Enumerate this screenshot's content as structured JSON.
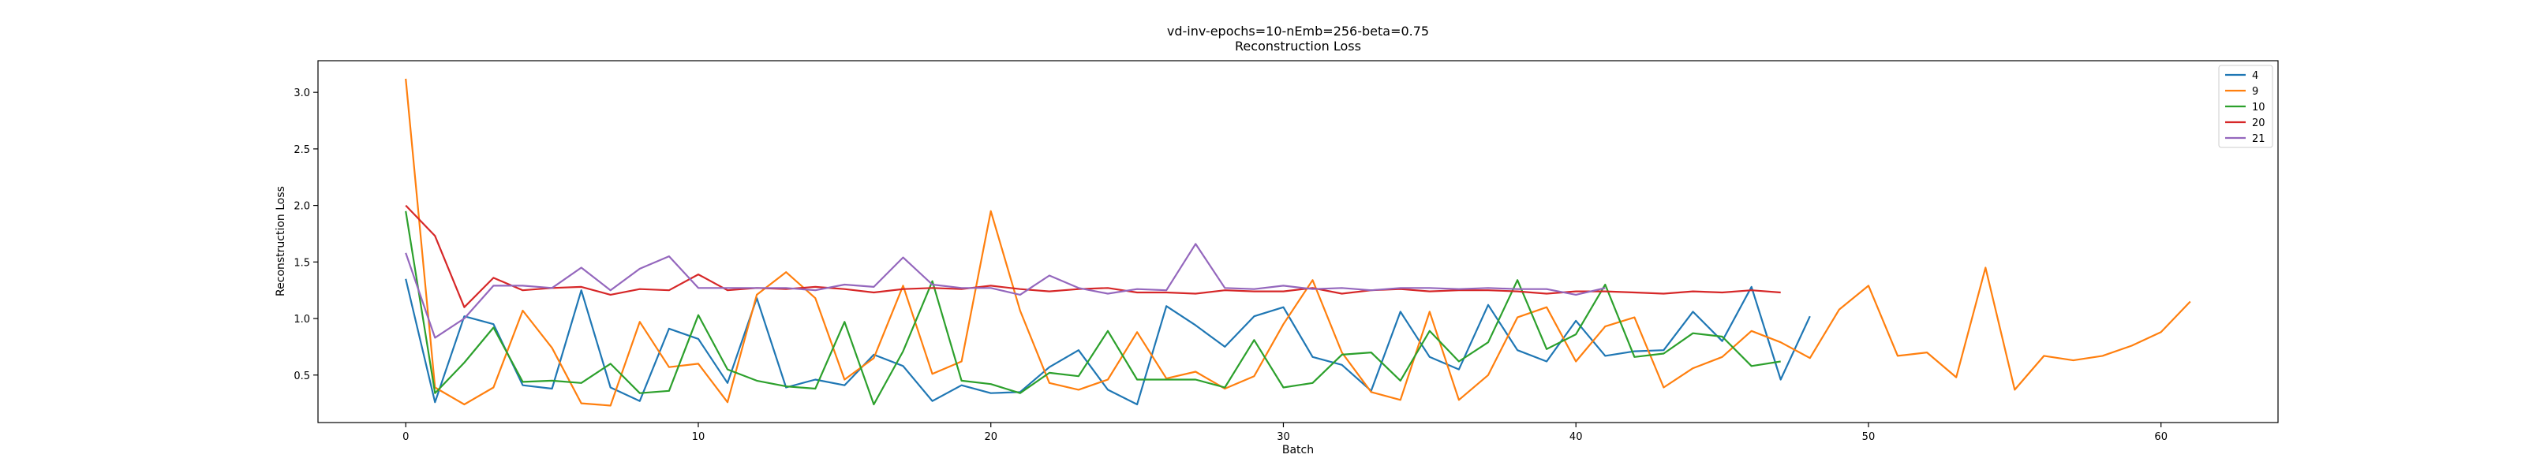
{
  "chart_data": {
    "type": "line",
    "title": "vd-inv-epochs=10-nEmb=256-beta=0.75",
    "subtitle": "Reconstruction Loss",
    "xlabel": "Batch",
    "ylabel": "Reconstruction Loss",
    "xlim": [
      -3,
      64
    ],
    "ylim": [
      0.08,
      3.28
    ],
    "xticks": [
      0,
      10,
      20,
      30,
      40,
      50,
      60
    ],
    "yticks": [
      0.5,
      1.0,
      1.5,
      2.0,
      2.5,
      3.0
    ],
    "ytick_labels": [
      "0.5",
      "1.0",
      "1.5",
      "2.0",
      "2.5",
      "3.0"
    ],
    "grid": false,
    "legend_position": "top-right",
    "series": [
      {
        "name": "4",
        "color": "#1f77b4",
        "x": [
          0,
          1,
          2,
          3,
          4,
          5,
          6,
          7,
          8,
          9,
          10,
          11,
          12,
          13,
          14,
          15,
          16,
          17,
          18,
          19,
          20,
          21,
          22,
          23,
          24,
          25,
          26,
          27,
          28,
          29,
          30,
          31,
          32,
          33,
          34,
          35,
          36,
          37,
          38,
          39,
          40,
          41,
          42,
          43,
          44,
          45,
          46,
          47,
          48
        ],
        "y": [
          1.35,
          0.26,
          1.02,
          0.95,
          0.41,
          0.38,
          1.25,
          0.39,
          0.27,
          0.91,
          0.82,
          0.43,
          1.18,
          0.39,
          0.46,
          0.41,
          0.68,
          0.58,
          0.27,
          0.41,
          0.34,
          0.35,
          0.57,
          0.72,
          0.37,
          0.24,
          1.11,
          0.94,
          0.75,
          1.02,
          1.1,
          0.66,
          0.59,
          0.36,
          1.06,
          0.66,
          0.55,
          1.12,
          0.72,
          0.62,
          0.98,
          0.67,
          0.71,
          0.72,
          1.06,
          0.8,
          1.28,
          0.46,
          1.02
        ]
      },
      {
        "name": "9",
        "color": "#ff7f0e",
        "x": [
          0,
          1,
          2,
          3,
          4,
          5,
          6,
          7,
          8,
          9,
          10,
          11,
          12,
          13,
          14,
          15,
          16,
          17,
          18,
          19,
          20,
          21,
          22,
          23,
          24,
          25,
          26,
          27,
          28,
          29,
          30,
          31,
          32,
          33,
          34,
          35,
          36,
          37,
          38,
          39,
          40,
          41,
          42,
          43,
          44,
          45,
          46,
          47,
          48,
          49,
          50,
          51,
          52,
          53,
          54,
          55,
          56,
          57,
          58,
          59,
          60,
          61
        ],
        "y": [
          3.12,
          0.39,
          0.24,
          0.39,
          1.07,
          0.74,
          0.25,
          0.23,
          0.97,
          0.57,
          0.6,
          0.26,
          1.21,
          1.41,
          1.18,
          0.46,
          0.65,
          1.29,
          0.51,
          0.62,
          1.95,
          1.07,
          0.43,
          0.37,
          0.46,
          0.88,
          0.47,
          0.53,
          0.38,
          0.49,
          0.95,
          1.34,
          0.7,
          0.35,
          0.28,
          1.06,
          0.28,
          0.5,
          1.01,
          1.1,
          0.62,
          0.93,
          1.01,
          0.39,
          0.56,
          0.66,
          0.89,
          0.79,
          0.65,
          1.08,
          1.29,
          0.67,
          0.7,
          0.48,
          1.45,
          0.37,
          0.67,
          0.63,
          0.67,
          0.76,
          0.88,
          1.15
        ]
      },
      {
        "name": "10",
        "color": "#2ca02c",
        "x": [
          0,
          1,
          2,
          3,
          4,
          5,
          6,
          7,
          8,
          9,
          10,
          11,
          12,
          13,
          14,
          15,
          16,
          17,
          18,
          19,
          20,
          21,
          22,
          23,
          24,
          25,
          26,
          27,
          28,
          29,
          30,
          31,
          32,
          33,
          34,
          35,
          36,
          37,
          38,
          39,
          40,
          41,
          42,
          43,
          44,
          45,
          46,
          47
        ],
        "y": [
          1.95,
          0.34,
          0.61,
          0.92,
          0.44,
          0.45,
          0.43,
          0.6,
          0.34,
          0.36,
          1.03,
          0.55,
          0.45,
          0.4,
          0.38,
          0.97,
          0.24,
          0.71,
          1.33,
          0.45,
          0.42,
          0.34,
          0.52,
          0.49,
          0.89,
          0.46,
          0.46,
          0.46,
          0.39,
          0.81,
          0.39,
          0.43,
          0.68,
          0.7,
          0.45,
          0.89,
          0.62,
          0.79,
          1.34,
          0.73,
          0.86,
          1.3,
          0.66,
          0.69,
          0.87,
          0.84,
          0.58,
          0.62
        ]
      },
      {
        "name": "20",
        "color": "#d62728",
        "x": [
          0,
          1,
          2,
          3,
          4,
          5,
          6,
          7,
          8,
          9,
          10,
          11,
          12,
          13,
          14,
          15,
          16,
          17,
          18,
          19,
          20,
          21,
          22,
          23,
          24,
          25,
          26,
          27,
          28,
          29,
          30,
          31,
          32,
          33,
          34,
          35,
          36,
          37,
          38,
          39,
          40,
          41,
          42,
          43,
          44,
          45,
          46,
          47
        ],
        "y": [
          2.0,
          1.73,
          1.1,
          1.36,
          1.25,
          1.27,
          1.28,
          1.21,
          1.26,
          1.25,
          1.39,
          1.25,
          1.27,
          1.26,
          1.28,
          1.26,
          1.23,
          1.26,
          1.27,
          1.26,
          1.29,
          1.26,
          1.24,
          1.26,
          1.27,
          1.23,
          1.23,
          1.22,
          1.25,
          1.24,
          1.24,
          1.27,
          1.22,
          1.25,
          1.26,
          1.24,
          1.25,
          1.25,
          1.24,
          1.22,
          1.24,
          1.24,
          1.23,
          1.22,
          1.24,
          1.23,
          1.25,
          1.23
        ]
      },
      {
        "name": "21",
        "color": "#9467bd",
        "x": [
          0,
          1,
          2,
          3,
          4,
          5,
          6,
          7,
          8,
          9,
          10,
          11,
          12,
          13,
          14,
          15,
          16,
          17,
          18,
          19,
          20,
          21,
          22,
          23,
          24,
          25,
          26,
          27,
          28,
          29,
          30,
          31,
          32,
          33,
          34,
          35,
          36,
          37,
          38,
          39,
          40,
          41
        ],
        "y": [
          1.58,
          0.83,
          1.0,
          1.29,
          1.29,
          1.27,
          1.45,
          1.25,
          1.44,
          1.55,
          1.27,
          1.27,
          1.27,
          1.27,
          1.25,
          1.3,
          1.28,
          1.54,
          1.3,
          1.27,
          1.27,
          1.21,
          1.38,
          1.27,
          1.22,
          1.26,
          1.25,
          1.66,
          1.27,
          1.26,
          1.29,
          1.26,
          1.27,
          1.25,
          1.27,
          1.27,
          1.26,
          1.27,
          1.26,
          1.26,
          1.21,
          1.27
        ]
      }
    ]
  }
}
